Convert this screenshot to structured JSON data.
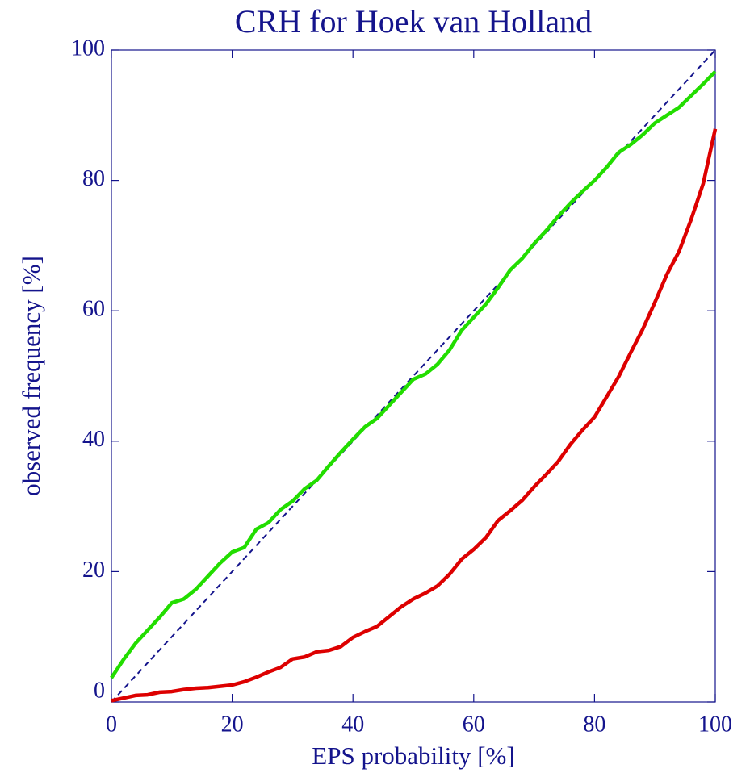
{
  "chart_data": {
    "type": "line",
    "title": "CRH for Hoek van Holland",
    "xlabel": "EPS probability [%]",
    "ylabel": "observed frequency [%]",
    "x": [
      0,
      2,
      4,
      6,
      8,
      10,
      12,
      14,
      16,
      18,
      20,
      22,
      24,
      26,
      28,
      30,
      32,
      34,
      36,
      38,
      40,
      42,
      44,
      46,
      48,
      50,
      52,
      54,
      56,
      58,
      60,
      62,
      64,
      66,
      68,
      70,
      72,
      74,
      76,
      78,
      80,
      82,
      84,
      86,
      88,
      90,
      92,
      94,
      96,
      98,
      100
    ],
    "series": [
      {
        "color": "#22dd00",
        "values": [
          3.7,
          6.5,
          9,
          11,
          13,
          15.2,
          15.8,
          17.3,
          19.3,
          21.3,
          23,
          23.7,
          26.5,
          27.5,
          29.5,
          30.8,
          32.7,
          34,
          36.2,
          38.3,
          40.3,
          42.2,
          43.5,
          45.5,
          47.5,
          49.5,
          50.3,
          51.8,
          54,
          57,
          59,
          61,
          63.5,
          66.2,
          68,
          70.3,
          72.3,
          74.5,
          76.5,
          78.3,
          80,
          82,
          84.3,
          85.5,
          87,
          88.8,
          90,
          91.2,
          93,
          94.8,
          96.7
        ]
      },
      {
        "color": "#dd0000",
        "values": [
          0.2,
          0.6,
          1,
          1.1,
          1.5,
          1.6,
          1.9,
          2.1,
          2.2,
          2.4,
          2.6,
          3.1,
          3.8,
          4.6,
          5.3,
          6.6,
          6.9,
          7.7,
          7.9,
          8.5,
          9.9,
          10.8,
          11.6,
          13.1,
          14.6,
          15.8,
          16.7,
          17.8,
          19.6,
          21.9,
          23.4,
          25.2,
          27.8,
          29.3,
          30.9,
          33,
          34.9,
          36.9,
          39.5,
          41.7,
          43.7,
          46.8,
          49.9,
          53.6,
          57.2,
          61.3,
          65.6,
          69.1,
          74,
          79.5,
          87.9
        ]
      },
      {
        "color": "#14148c",
        "dashed": true,
        "x": [
          0,
          100
        ],
        "values": [
          0,
          100
        ]
      }
    ],
    "xlim": [
      0,
      100
    ],
    "xticks": [
      0,
      20,
      40,
      60,
      80,
      100
    ],
    "ylim": [
      0,
      100
    ],
    "yticks": [
      0,
      20,
      40,
      60,
      80,
      100
    ],
    "grid": false
  }
}
